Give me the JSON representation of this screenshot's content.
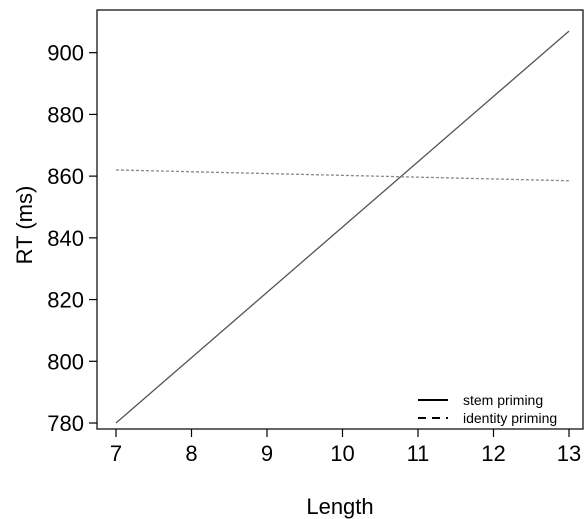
{
  "chart_data": {
    "type": "line",
    "xlabel": "Length",
    "ylabel": "RT (ms)",
    "xlim": [
      7,
      13
    ],
    "ylim": [
      780,
      908
    ],
    "xticks": [
      7,
      8,
      9,
      10,
      11,
      12,
      13
    ],
    "yticks": [
      780,
      800,
      820,
      840,
      860,
      880,
      900
    ],
    "grid": false,
    "legend_position": "bottom-right",
    "series": [
      {
        "name": "stem priming",
        "style": "solid",
        "color": "#555555",
        "x": [
          7,
          13
        ],
        "y": [
          780,
          907
        ]
      },
      {
        "name": "identity priming",
        "style": "dashed",
        "color": "#888888",
        "x": [
          7,
          13
        ],
        "y": [
          862,
          858.5
        ]
      }
    ]
  }
}
